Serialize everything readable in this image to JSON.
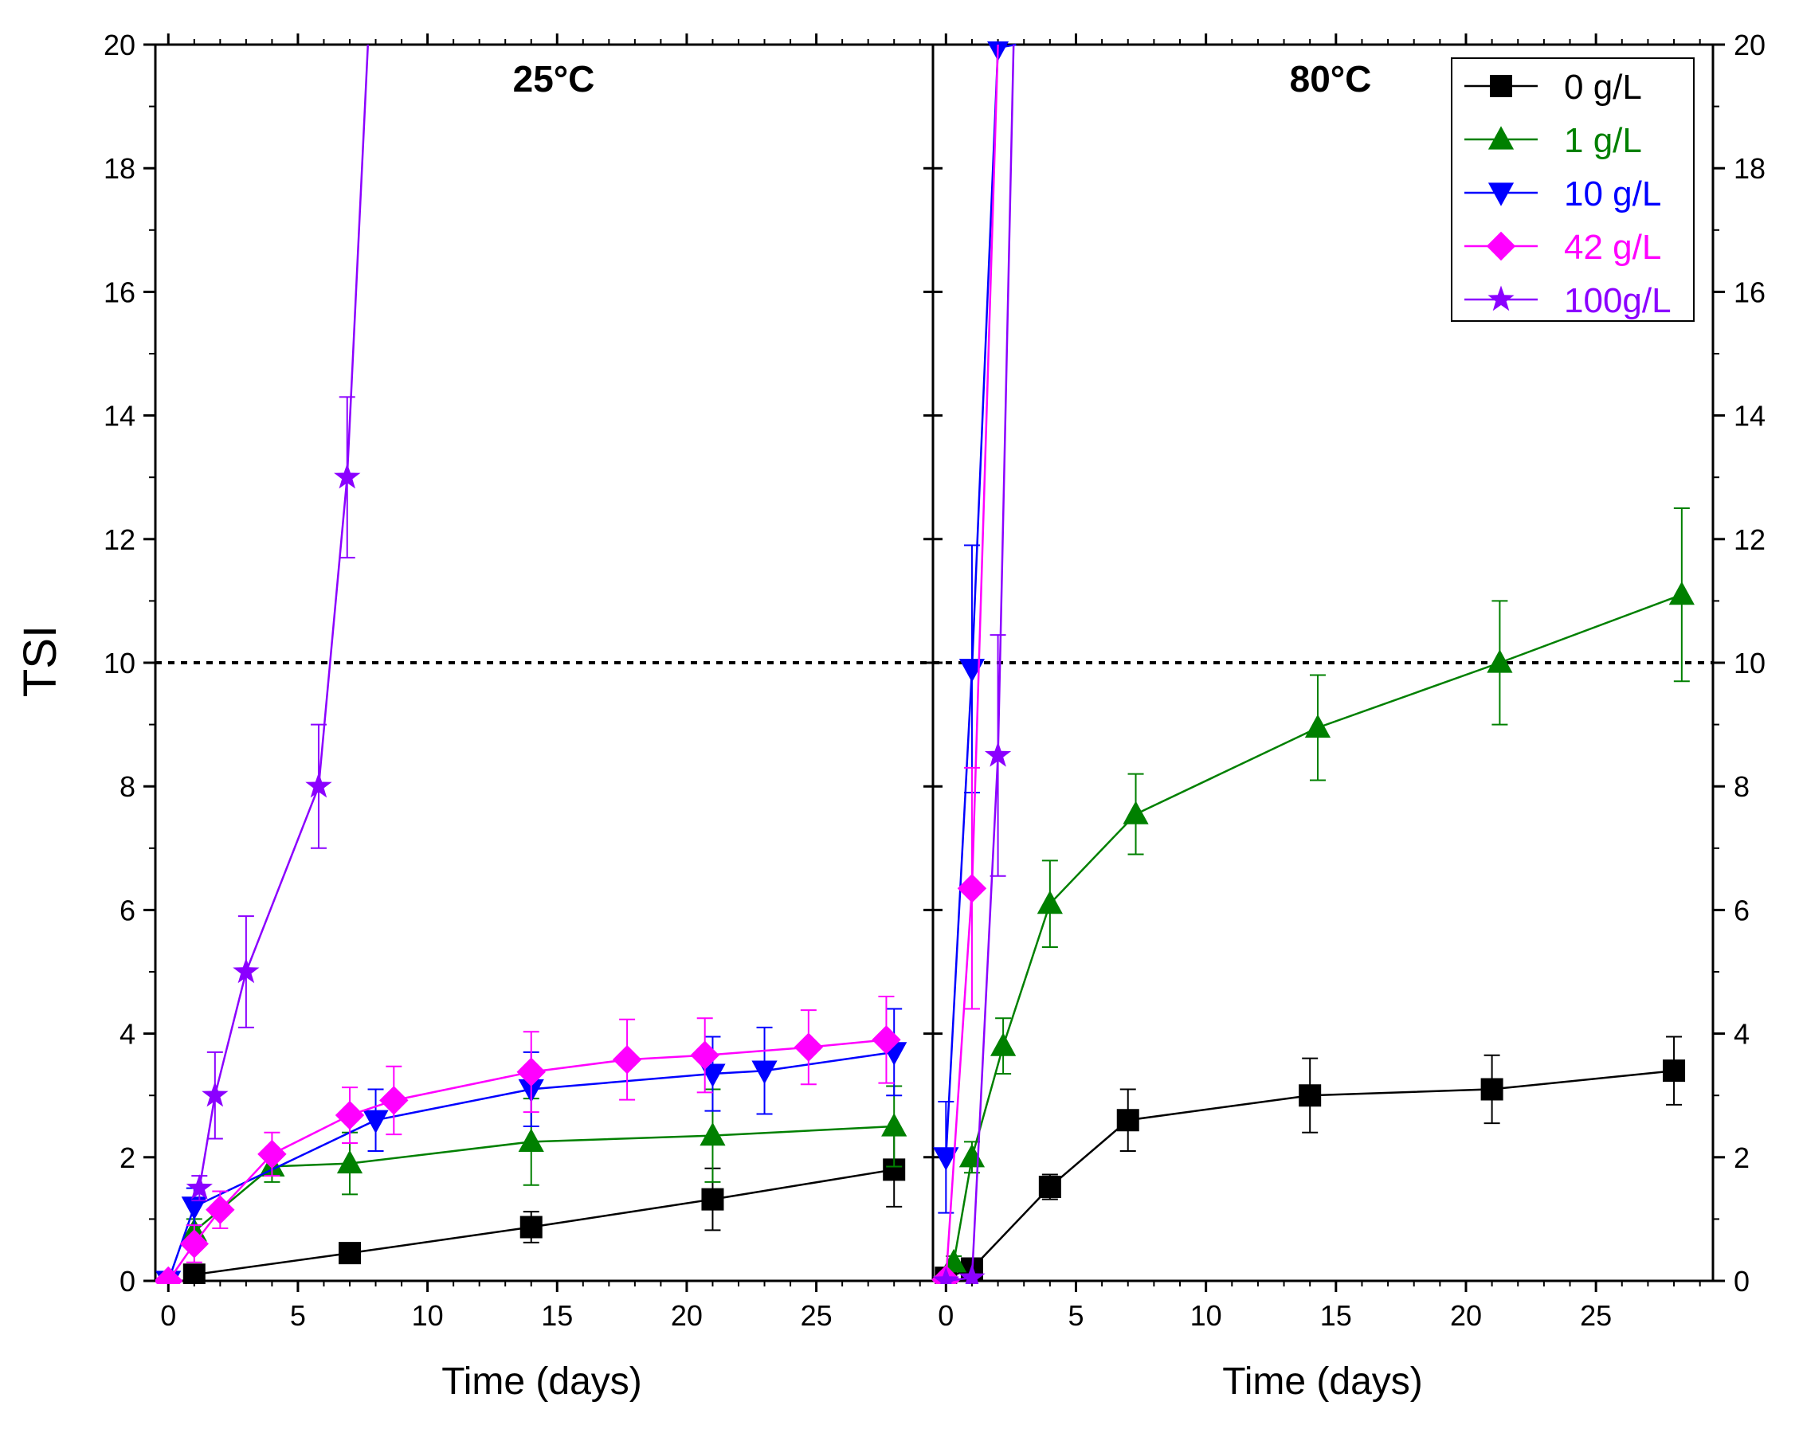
{
  "chart_data": {
    "type": "line",
    "ylabel": "TSI",
    "xlabel": "Time (days)",
    "ylim": [
      0,
      20
    ],
    "xlim": [
      0,
      29.5
    ],
    "yticks": [
      0,
      2,
      4,
      6,
      8,
      10,
      12,
      14,
      16,
      18,
      20
    ],
    "xticks": [
      0,
      5,
      10,
      15,
      20,
      25
    ],
    "threshold": 10,
    "colors": {
      "0 g/L": "#000000",
      "1 g/L": "#008000",
      "10 g/L": "#0000ff",
      "42 g/L": "#ff00ff",
      "100g/L": "#8b00ff"
    },
    "legend": [
      {
        "name": "0 g/L",
        "marker": "square"
      },
      {
        "name": "1 g/L",
        "marker": "triangle-up"
      },
      {
        "name": "10 g/L",
        "marker": "triangle-down"
      },
      {
        "name": "42 g/L",
        "marker": "diamond"
      },
      {
        "name": "100g/L",
        "marker": "star"
      }
    ],
    "panels": [
      {
        "title": "25°C",
        "series": [
          {
            "name": "0 g/L",
            "marker": "square",
            "x": [
              1,
              7,
              14,
              21,
              28
            ],
            "y": [
              0.1,
              0.45,
              0.87,
              1.32,
              1.8
            ],
            "err": [
              0.05,
              0.1,
              0.25,
              0.5,
              0.6
            ]
          },
          {
            "name": "1 g/L",
            "marker": "triangle-up",
            "x": [
              1,
              4,
              7,
              14,
              21,
              28
            ],
            "y": [
              0.8,
              1.85,
              1.9,
              2.25,
              2.35,
              2.5
            ],
            "err": [
              0.2,
              0.25,
              0.5,
              0.7,
              0.75,
              0.65
            ]
          },
          {
            "name": "10 g/L",
            "marker": "triangle-down",
            "x": [
              0,
              1,
              8,
              14,
              21,
              23,
              28
            ],
            "y": [
              0,
              1.2,
              2.6,
              3.1,
              3.35,
              3.4,
              3.7
            ],
            "err": [
              0,
              0.3,
              0.5,
              0.6,
              0.6,
              0.7,
              0.7
            ]
          },
          {
            "name": "42 g/L",
            "marker": "diamond",
            "x": [
              0,
              1,
              2,
              4,
              7,
              8.7,
              14,
              17.7,
              20.7,
              24.7,
              27.7
            ],
            "y": [
              0,
              0.6,
              1.15,
              2.05,
              2.68,
              2.92,
              3.38,
              3.58,
              3.65,
              3.78,
              3.9
            ],
            "err": [
              0,
              0.3,
              0.3,
              0.35,
              0.45,
              0.55,
              0.65,
              0.65,
              0.6,
              0.6,
              0.7
            ]
          },
          {
            "name": "100g/L",
            "marker": "star",
            "x": [
              1.2,
              1.8,
              3,
              5.8,
              6.9,
              7.7
            ],
            "y": [
              1.5,
              3,
              5,
              8,
              13,
              20
            ],
            "err": [
              0.2,
              0.7,
              0.9,
              1.0,
              1.3,
              0
            ]
          }
        ]
      },
      {
        "title": "80°C",
        "series": [
          {
            "name": "0 g/L",
            "marker": "square",
            "x": [
              0,
              1,
              4,
              7,
              14,
              21,
              28
            ],
            "y": [
              0.05,
              0.2,
              1.52,
              2.6,
              3.0,
              3.1,
              3.4
            ],
            "err": [
              0,
              0.05,
              0.2,
              0.5,
              0.6,
              0.55,
              0.55
            ]
          },
          {
            "name": "1 g/L",
            "marker": "triangle-up",
            "x": [
              0.3,
              1,
              2.2,
              4,
              7.3,
              14.3,
              21.3,
              28.3
            ],
            "y": [
              0.3,
              2.0,
              3.8,
              6.1,
              7.55,
              8.95,
              10.0,
              11.1
            ],
            "err": [
              0.1,
              0.25,
              0.45,
              0.7,
              0.65,
              0.85,
              1.0,
              1.4
            ]
          },
          {
            "name": "10 g/L",
            "marker": "triangle-down",
            "x": [
              0,
              1,
              2,
              2.7
            ],
            "y": [
              2.0,
              9.9,
              19.95,
              20
            ],
            "err": [
              0.9,
              2.0,
              0,
              0
            ]
          },
          {
            "name": "42 g/L",
            "marker": "diamond",
            "x": [
              0,
              1,
              2
            ],
            "y": [
              0.02,
              6.35,
              20
            ],
            "err": [
              0,
              1.95,
              0
            ]
          },
          {
            "name": "100g/L",
            "marker": "star",
            "x": [
              0,
              1,
              2,
              2.6
            ],
            "y": [
              0,
              0.05,
              8.5,
              20
            ],
            "err": [
              0,
              0,
              1.95,
              0
            ]
          }
        ]
      }
    ]
  }
}
